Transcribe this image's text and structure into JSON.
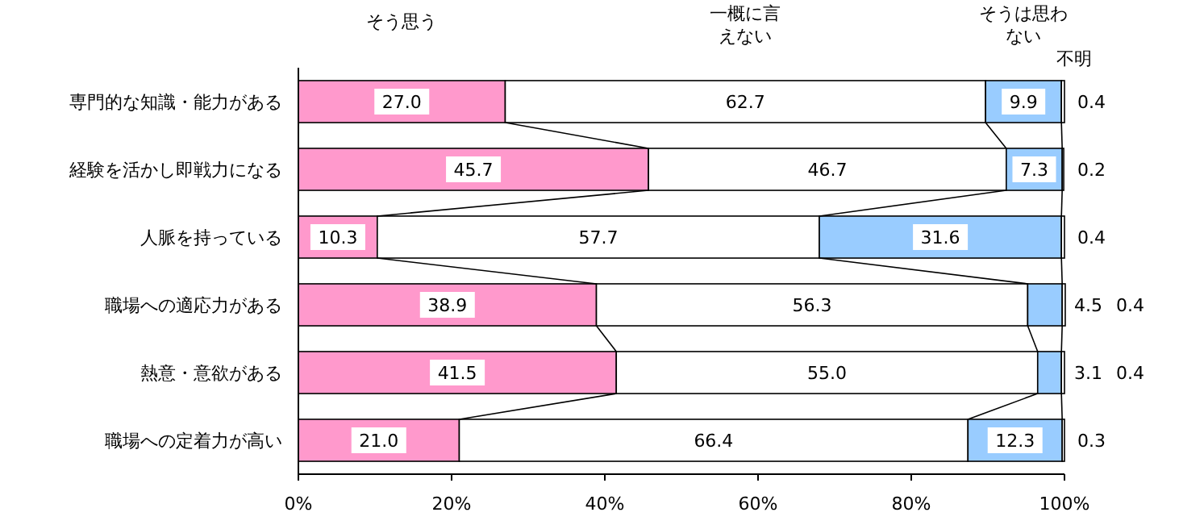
{
  "chart_data": {
    "type": "bar",
    "orientation": "horizontal",
    "stacked": true,
    "legend": "top",
    "categories": [
      "専門的な知識・能力がある",
      "経験を活かし即戦力になる",
      "人脈を持っている",
      "職場への適応力がある",
      "熱意・意欲がある",
      "職場への定着力が高い"
    ],
    "series": [
      {
        "name": "そう思う",
        "color": "#ff99cc",
        "values": [
          27.0,
          45.7,
          10.3,
          38.9,
          41.5,
          21.0
        ],
        "value_labels": [
          "27.0",
          "45.7",
          "10.3",
          "38.9",
          "41.5",
          "21.0"
        ]
      },
      {
        "name": "一概に言えない",
        "color": "#ffffff",
        "values": [
          62.7,
          46.7,
          57.7,
          56.3,
          55.0,
          66.4
        ],
        "value_labels": [
          "62.7",
          "46.7",
          "57.7",
          "56.3",
          "55.0",
          "66.4"
        ]
      },
      {
        "name": "そうは思わない",
        "color": "#99ccff",
        "values": [
          9.9,
          7.3,
          31.6,
          4.5,
          3.1,
          12.3
        ],
        "value_labels": [
          "9.9",
          "7.3",
          "31.6",
          "4.5",
          "3.1",
          "12.3"
        ]
      },
      {
        "name": "不明",
        "color": "#ffffff",
        "values": [
          0.4,
          0.2,
          0.4,
          0.4,
          0.4,
          0.3
        ],
        "value_labels": [
          "0.4",
          "0.2",
          "0.4",
          "0.4",
          "0.4",
          "0.3"
        ]
      }
    ],
    "xlim": [
      0,
      100
    ],
    "xticks": [
      {
        "value": 0,
        "label": "0%"
      },
      {
        "value": 20,
        "label": "20%"
      },
      {
        "value": 40,
        "label": "40%"
      },
      {
        "value": 60,
        "label": "60%"
      },
      {
        "value": 80,
        "label": "80%"
      },
      {
        "value": 100,
        "label": "100%"
      }
    ]
  }
}
